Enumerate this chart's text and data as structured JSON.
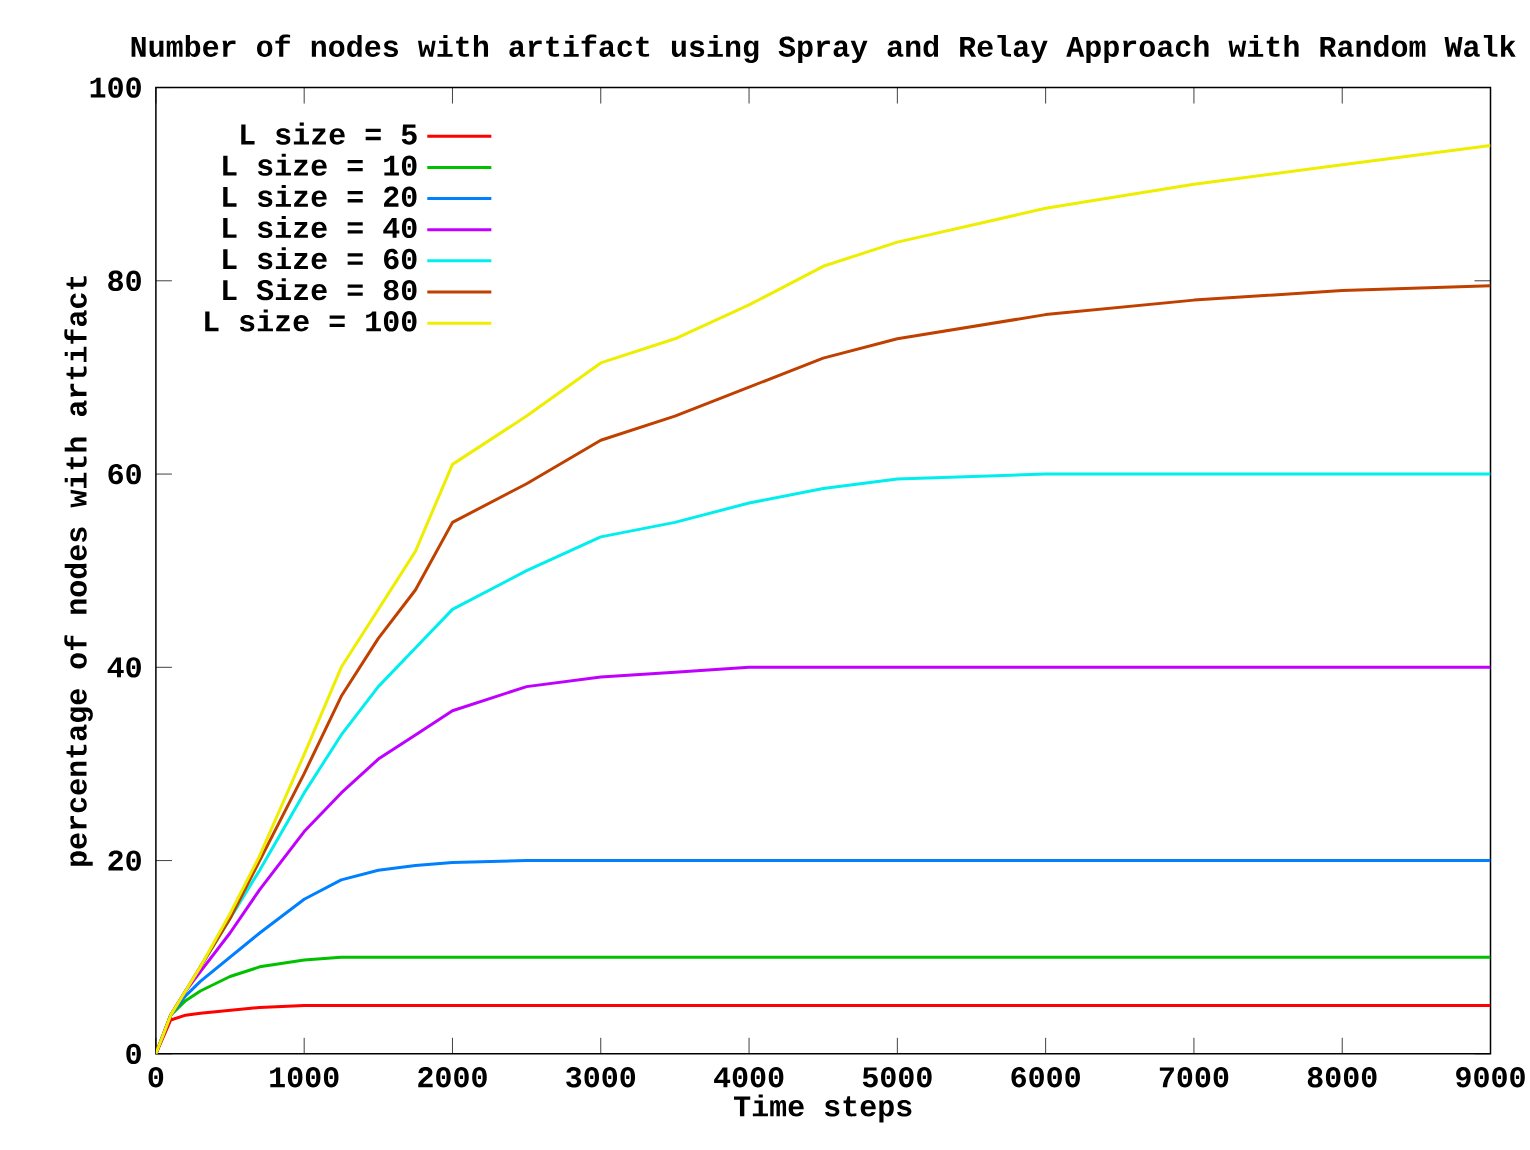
{
  "chart_data": {
    "type": "line",
    "title": "Number of nodes with artifact using Spray and Relay Approach with Random Walk",
    "xlabel": "Time steps",
    "ylabel": "percentage of nodes with artifact",
    "x": [
      0,
      100,
      200,
      300,
      500,
      700,
      1000,
      1250,
      1500,
      1750,
      2000,
      2500,
      3000,
      3500,
      4000,
      4500,
      5000,
      6000,
      7000,
      8000,
      9000
    ],
    "xlim": [
      0,
      9000
    ],
    "ylim": [
      0,
      100
    ],
    "xticks": [
      0,
      1000,
      2000,
      3000,
      4000,
      5000,
      6000,
      7000,
      8000,
      9000
    ],
    "yticks": [
      0,
      20,
      40,
      60,
      80,
      100
    ],
    "legend": "top left",
    "grid": false,
    "marker": "none",
    "line_style": "solid",
    "series": [
      {
        "name": "L size = 5",
        "color": "#ff0000",
        "values": [
          0,
          3.5,
          4,
          4.2,
          4.5,
          4.8,
          5,
          5,
          5,
          5,
          5,
          5,
          5,
          5,
          5,
          5,
          5,
          5,
          5,
          5,
          5
        ]
      },
      {
        "name": "L size = 10",
        "color": "#00c000",
        "values": [
          0,
          4,
          5.5,
          6.5,
          8,
          9,
          9.7,
          10,
          10,
          10,
          10,
          10,
          10,
          10,
          10,
          10,
          10,
          10,
          10,
          10,
          10
        ]
      },
      {
        "name": "L size = 20",
        "color": "#0080ff",
        "values": [
          0,
          4,
          6,
          7.5,
          10,
          12.5,
          16,
          18,
          19,
          19.5,
          19.8,
          20,
          20,
          20,
          20,
          20,
          20,
          20,
          20,
          20,
          20
        ]
      },
      {
        "name": "L size = 40",
        "color": "#c000ff",
        "values": [
          0,
          4,
          6.5,
          8.5,
          12.5,
          17,
          23,
          27,
          30.5,
          33,
          35.5,
          38,
          39,
          39.5,
          40,
          40,
          40,
          40,
          40,
          40,
          40
        ]
      },
      {
        "name": "L size = 60",
        "color": "#00eeee",
        "values": [
          null,
          null,
          null,
          9,
          14,
          19,
          27,
          33,
          38,
          42,
          46,
          50,
          53.5,
          55,
          57,
          58.5,
          59.5,
          60,
          60,
          60,
          60
        ]
      },
      {
        "name": "L Size = 80",
        "color": "#c04000",
        "values": [
          0,
          4,
          6.5,
          9,
          14,
          20,
          29,
          37,
          43,
          48,
          55,
          59,
          63.5,
          66,
          69,
          72,
          74,
          76.5,
          78,
          79,
          79.5
        ]
      },
      {
        "name": "L size = 100",
        "color": "#eeee00",
        "values": [
          0,
          4,
          6.5,
          9,
          14.5,
          20.5,
          31,
          40,
          46,
          52,
          61,
          66,
          71.5,
          74,
          77.5,
          81.5,
          84,
          87.5,
          90,
          92,
          94
        ]
      }
    ]
  }
}
